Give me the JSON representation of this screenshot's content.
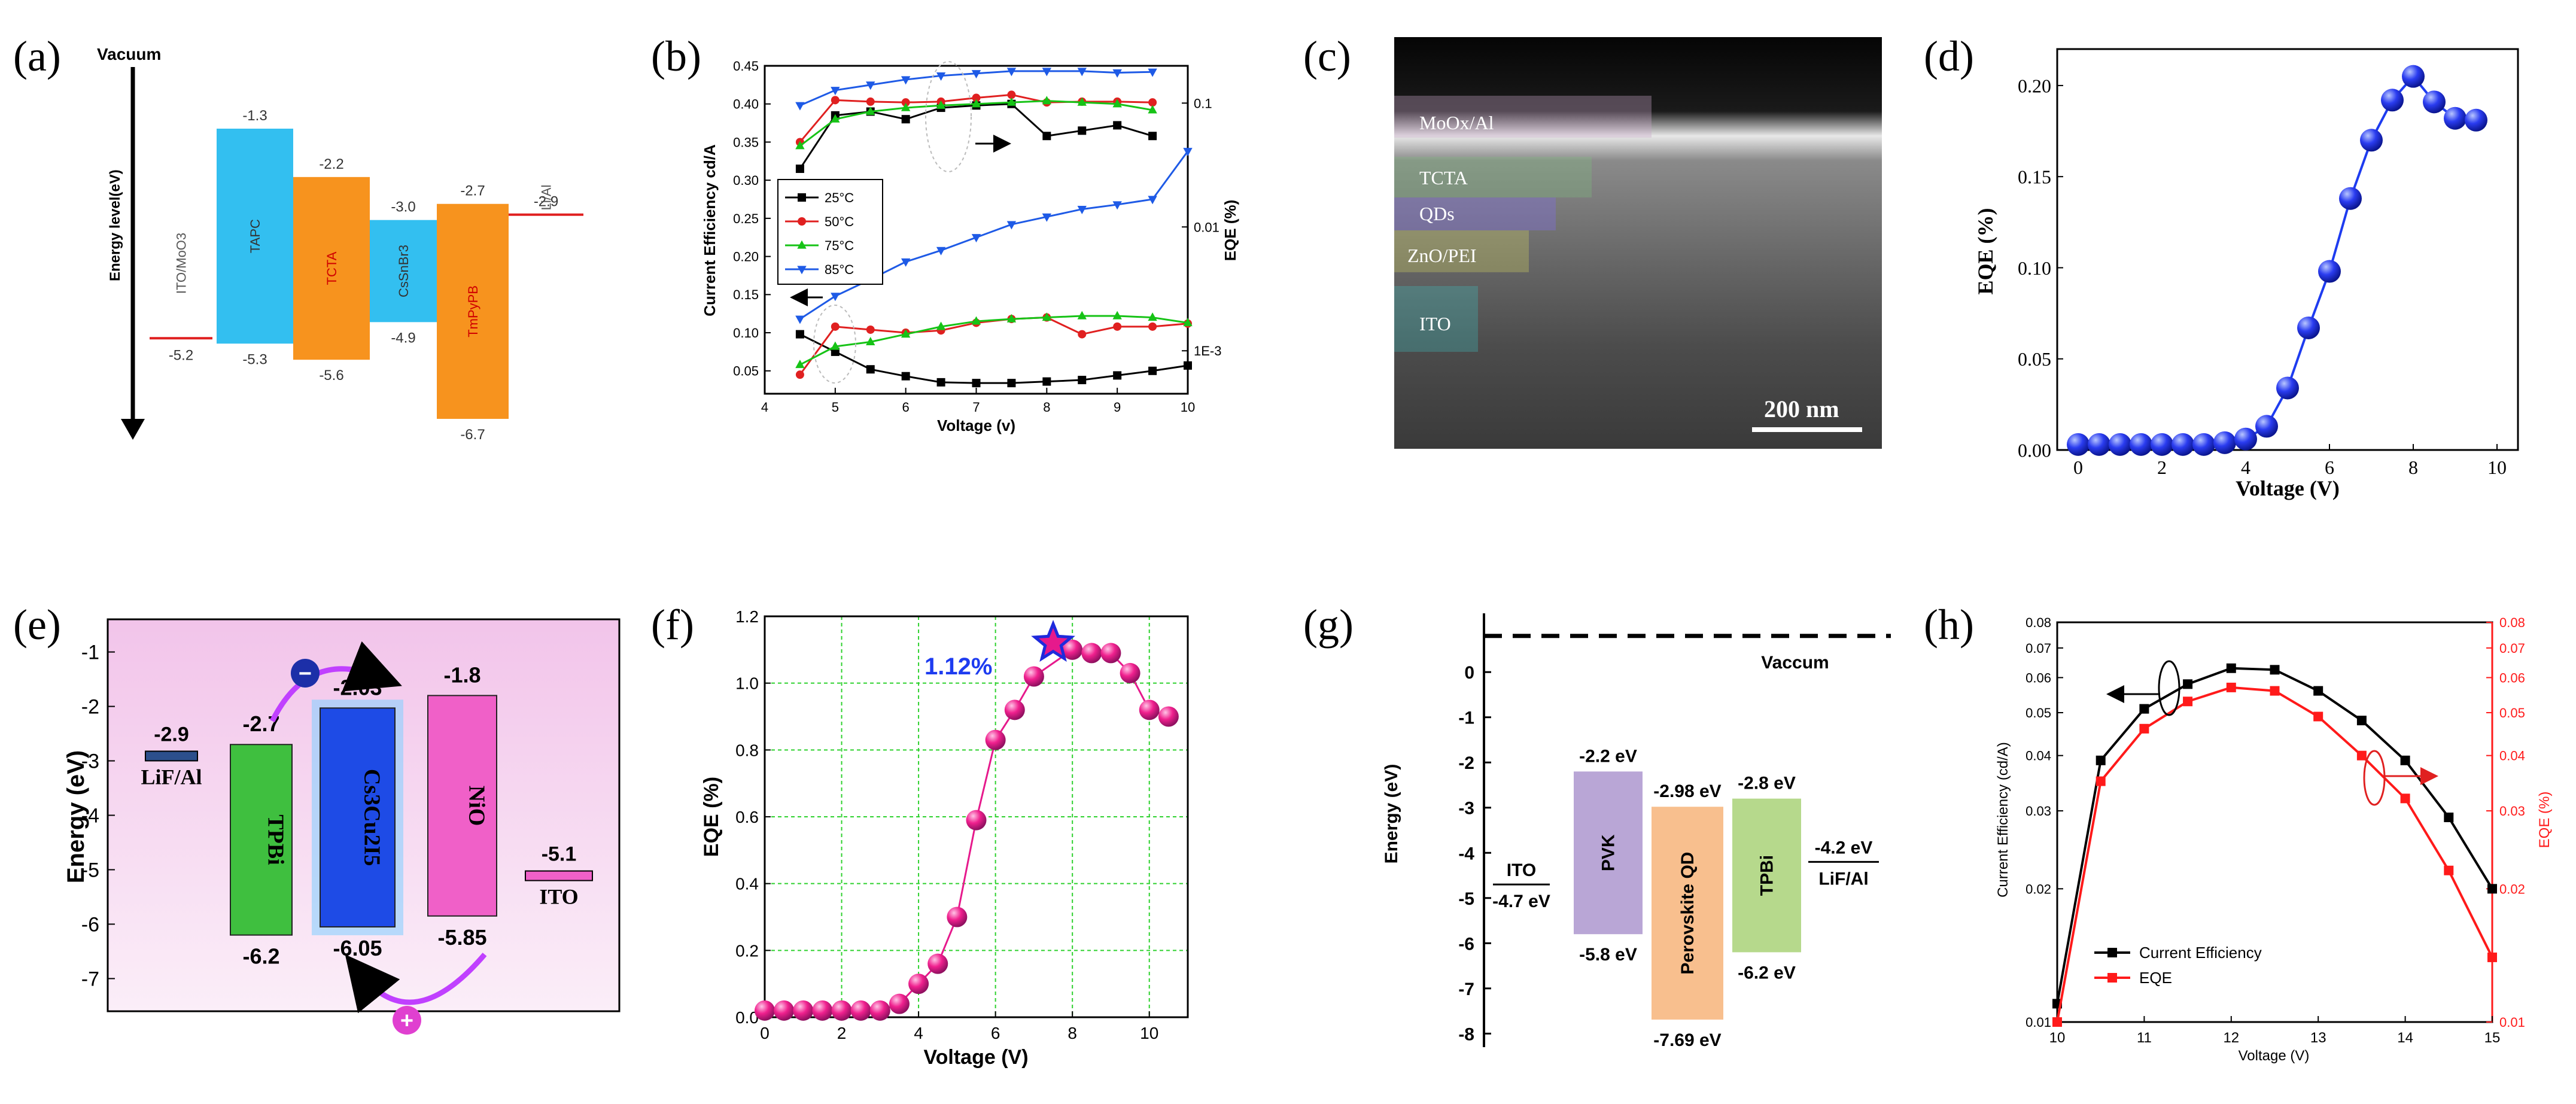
{
  "panel_labels": [
    "(a)",
    "(b)",
    "(c)",
    "(d)",
    "(e)",
    "(f)",
    "(g)",
    "(h)"
  ],
  "colors": {
    "cyan": "#33bff0",
    "orange": "#f7931e",
    "red": "#e02020",
    "blue": "#1e3cf0",
    "pink": "#e6198c",
    "green": "#3fbf3f",
    "purple": "#b9a6d6",
    "peach": "#f8bf8e",
    "lightgreen": "#b6d98c"
  },
  "chart_data": [
    {
      "panel": "a",
      "type": "energy-diagram",
      "vacuum_label": "Vacuum",
      "ylabel": "Energy level(eV)",
      "layers": [
        {
          "name": "ITO/MoO3",
          "top": "-5.2",
          "kind": "line",
          "color": "#e02020"
        },
        {
          "name": "TAPC",
          "top": "-1.3",
          "bottom": "-5.3",
          "color": "#33bff0",
          "label_color": "#333333"
        },
        {
          "name": "TCTA",
          "top": "-2.2",
          "bottom": "-5.6",
          "color": "#f7931e",
          "label_color": "#d00000"
        },
        {
          "name": "CsSnBr3",
          "top": "-3.0",
          "bottom": "-4.9",
          "color": "#33bff0",
          "label_color": "#333333"
        },
        {
          "name": "TmPyPB",
          "top": "-2.7",
          "bottom": "-6.7",
          "color": "#f7931e",
          "label_color": "#d00000"
        },
        {
          "name": "Li/Al",
          "top": "-2.9",
          "kind": "line",
          "color": "#e02020"
        }
      ]
    },
    {
      "panel": "b",
      "type": "line",
      "xlabel": "Voltage (v)",
      "ylabel": "Current Efficiency  cd/A",
      "y2label": "EQE (%)",
      "xlim": [
        4,
        10
      ],
      "ylim": [
        0.02,
        0.45
      ],
      "xticks": [
        "4",
        "5",
        "6",
        "7",
        "8",
        "9",
        "10"
      ],
      "yticks": [
        "0.05",
        "0.10",
        "0.15",
        "0.20",
        "0.25",
        "0.30",
        "0.35",
        "0.40",
        "0.45"
      ],
      "y2ticks": [
        "1E-3",
        "0.01",
        "0.1"
      ],
      "x": [
        4.5,
        5,
        5.5,
        6,
        6.5,
        7,
        7.5,
        8,
        8.5,
        9,
        9.5,
        10
      ],
      "series": [
        {
          "name": "25°C",
          "color": "#000000",
          "marker": "square",
          "ce": [
            0.315,
            0.385,
            0.39,
            0.38,
            0.395,
            0.398,
            0.4,
            0.358,
            0.365,
            0.372,
            0.358,
            null
          ],
          "eqe": [
            0.098,
            0.075,
            0.052,
            0.043,
            0.035,
            0.034,
            0.034,
            0.036,
            0.038,
            0.044,
            0.05,
            0.057
          ]
        },
        {
          "name": "50°C",
          "color": "#e02020",
          "marker": "circle",
          "ce": [
            0.35,
            0.405,
            0.403,
            0.402,
            0.403,
            0.408,
            0.412,
            0.402,
            0.403,
            0.403,
            0.402,
            null
          ],
          "eqe": [
            0.045,
            0.108,
            0.104,
            0.1,
            0.103,
            0.113,
            0.118,
            0.12,
            0.098,
            0.108,
            0.108,
            0.112
          ]
        },
        {
          "name": "75°C",
          "color": "#16c316",
          "marker": "triangle-up",
          "ce": [
            0.345,
            0.38,
            0.39,
            0.395,
            0.398,
            0.4,
            0.402,
            0.404,
            0.402,
            0.4,
            0.392,
            null
          ],
          "eqe": [
            0.058,
            0.082,
            0.088,
            0.098,
            0.108,
            0.115,
            0.118,
            0.12,
            0.122,
            0.122,
            0.12,
            0.113
          ]
        },
        {
          "name": "85°C",
          "color": "#1e5ae6",
          "marker": "triangle-down",
          "ce": [
            0.398,
            0.418,
            0.425,
            0.432,
            0.437,
            0.44,
            0.443,
            0.443,
            0.443,
            0.441,
            0.442,
            null
          ],
          "eqe": [
            0.118,
            0.148,
            0.17,
            0.193,
            0.208,
            0.225,
            0.242,
            0.252,
            0.262,
            0.268,
            0.275,
            0.338
          ]
        }
      ]
    },
    {
      "panel": "c",
      "type": "image",
      "layers": [
        "MoOx/Al",
        "TCTA",
        "QDs",
        "ZnO/PEI",
        "ITO"
      ],
      "scale_bar": "200 nm"
    },
    {
      "panel": "d",
      "type": "scatter-line",
      "xlabel": "Voltage (V)",
      "ylabel": "EQE (%)",
      "xlim": [
        -0.5,
        10.5
      ],
      "ylim": [
        0,
        0.22
      ],
      "xticks": [
        "0",
        "2",
        "4",
        "6",
        "8",
        "10"
      ],
      "yticks": [
        "0.00",
        "0.05",
        "0.10",
        "0.15",
        "0.20"
      ],
      "x": [
        0,
        0.5,
        1,
        1.5,
        2,
        2.5,
        3,
        3.5,
        4,
        4.5,
        5,
        5.5,
        6,
        6.5,
        7,
        7.5,
        8,
        8.5,
        9,
        9.5
      ],
      "values": [
        0.003,
        0.003,
        0.003,
        0.003,
        0.003,
        0.003,
        0.003,
        0.004,
        0.006,
        0.013,
        0.034,
        0.067,
        0.098,
        0.138,
        0.17,
        0.192,
        0.205,
        0.191,
        0.182,
        0.181
      ]
    },
    {
      "panel": "e",
      "type": "energy-diagram",
      "ylabel": "Energy (eV)",
      "yticks": [
        "-1",
        "-2",
        "-3",
        "-4",
        "-5",
        "-6",
        "-7"
      ],
      "ylim": [
        -7.6,
        -0.4
      ],
      "layers": [
        {
          "name": "LiF/Al",
          "top": "-2.9",
          "kind": "thin",
          "color": "#2c4f8c"
        },
        {
          "name": "TPBi",
          "top": "-2.7",
          "bottom": "-6.2",
          "color": "#3fbf3f"
        },
        {
          "name": "Cs3Cu2I5",
          "top": "-2.03",
          "bottom": "-6.05",
          "color": "#1e4be6"
        },
        {
          "name": "NiO",
          "top": "-1.8",
          "bottom": "-5.85",
          "color": "#f060c8"
        },
        {
          "name": "ITO",
          "top": "-5.1",
          "kind": "thin",
          "color": "#f060c8"
        }
      ],
      "electron_symbol": "−",
      "hole_symbol": "+"
    },
    {
      "panel": "f",
      "type": "scatter-line",
      "xlabel": "Voltage (V)",
      "ylabel": "EQE (%)",
      "xlim": [
        0,
        11
      ],
      "ylim": [
        0,
        1.2
      ],
      "xticks": [
        "0",
        "2",
        "4",
        "6",
        "8",
        "10"
      ],
      "yticks": [
        "0.0",
        "0.2",
        "0.4",
        "0.6",
        "0.8",
        "1.0",
        "1.2"
      ],
      "annotation": "1.12%",
      "peak_x": 7.5,
      "peak_y": 1.12,
      "x": [
        0,
        0.5,
        1,
        1.5,
        2,
        2.5,
        3,
        3.5,
        4,
        4.5,
        5,
        5.5,
        6,
        6.5,
        7,
        8,
        8.5,
        9,
        9.5,
        10,
        10.5
      ],
      "values": [
        0.02,
        0.02,
        0.02,
        0.02,
        0.02,
        0.02,
        0.02,
        0.04,
        0.1,
        0.16,
        0.3,
        0.59,
        0.83,
        0.92,
        1.02,
        1.1,
        1.09,
        1.09,
        1.03,
        0.92,
        0.9
      ]
    },
    {
      "panel": "g",
      "type": "energy-diagram",
      "ylabel": "Energy (eV)",
      "vacuum_label": "Vaccum",
      "ylim": [
        -8.3,
        1.3
      ],
      "yticks": [
        "0",
        "-1",
        "-2",
        "-3",
        "-4",
        "-5",
        "-6",
        "-7",
        "-8"
      ],
      "layers": [
        {
          "name": "ITO",
          "top": "-4.7 eV",
          "kind": "line"
        },
        {
          "name": "PVK",
          "top": "-2.2 eV",
          "bottom": "-5.8 eV",
          "color": "#b9a6d6"
        },
        {
          "name": "Perovskite QD",
          "top": "-2.98 eV",
          "bottom": "-7.69 eV",
          "color": "#f8bf8e"
        },
        {
          "name": "TPBi",
          "top": "-2.8 eV",
          "bottom": "-6.2 eV",
          "color": "#b6d98c"
        },
        {
          "name": "LiF/Al",
          "top": "-4.2 eV",
          "kind": "line"
        }
      ]
    },
    {
      "panel": "h",
      "type": "line",
      "xlabel": "Voltage (V)",
      "ylabel": "Current Efficiency (cd/A)",
      "y2label": "EQE (%)",
      "xlim": [
        10,
        15
      ],
      "ylim": [
        0.01,
        0.08
      ],
      "xticks": [
        "10",
        "11",
        "12",
        "13",
        "14",
        "15"
      ],
      "yticks": [
        "0.01",
        "0.02",
        "0.03",
        "0.04",
        "0.05",
        "0.06",
        "0.07",
        "0.08"
      ],
      "x": [
        10,
        10.5,
        11,
        11.5,
        12,
        12.5,
        13,
        13.5,
        14,
        14.5,
        15
      ],
      "series": [
        {
          "name": "Current Efficiency",
          "color": "#000000",
          "marker": "square",
          "values": [
            0.011,
            0.039,
            0.051,
            0.058,
            0.063,
            0.0625,
            0.056,
            0.048,
            0.039,
            0.029,
            0.02
          ]
        },
        {
          "name": "EQE",
          "color": "#ff1a1a",
          "marker": "square",
          "values": [
            0.01,
            0.035,
            0.046,
            0.053,
            0.057,
            0.056,
            0.049,
            0.04,
            0.032,
            0.022,
            0.014
          ]
        }
      ]
    }
  ]
}
